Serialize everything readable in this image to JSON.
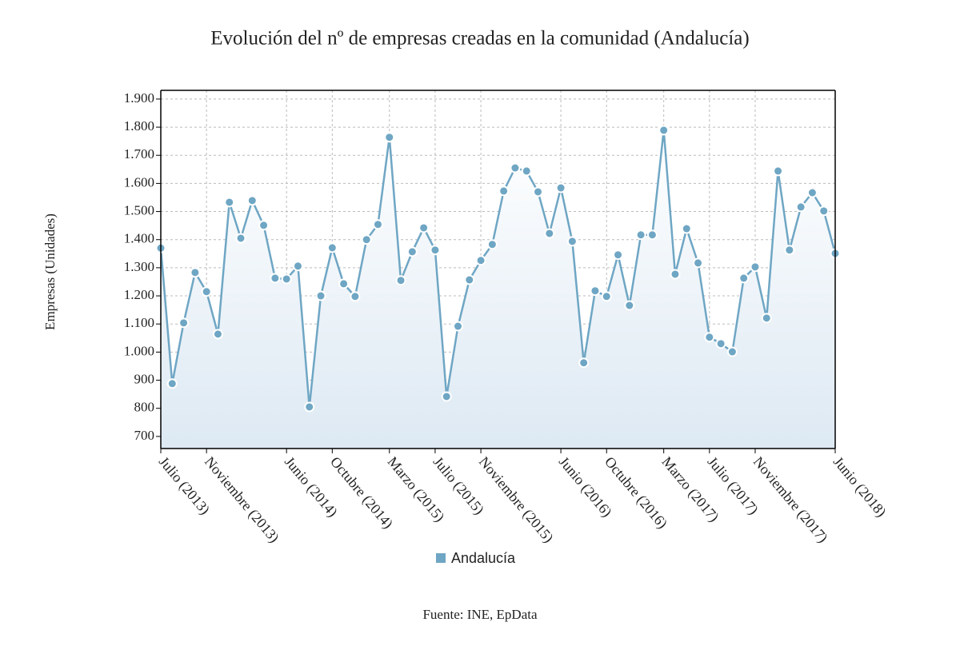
{
  "chart_data": {
    "type": "line",
    "title": "Evolución del nº de empresas creadas en la comunidad (Andalucía)",
    "y_label": "Empresas (Unidades)",
    "source": "Fuente: INE, EpData",
    "categories": [
      "Julio (2013)",
      null,
      null,
      null,
      "Noviembre (2013)",
      null,
      null,
      null,
      null,
      null,
      null,
      "Junio (2014)",
      null,
      null,
      null,
      "Octubre (2014)",
      null,
      null,
      null,
      null,
      "Marzo (2015)",
      null,
      null,
      null,
      "Julio (2015)",
      null,
      null,
      null,
      "Noviembre (2015)",
      null,
      null,
      null,
      null,
      null,
      null,
      "Junio (2016)",
      null,
      null,
      null,
      "Octubre (2016)",
      null,
      null,
      null,
      null,
      "Marzo (2017)",
      null,
      null,
      null,
      "Julio (2017)",
      null,
      null,
      null,
      "Noviembre (2017)",
      null,
      null,
      null,
      null,
      null,
      null,
      "Junio (2018)"
    ],
    "series": [
      {
        "name": "Andalucía",
        "color": "#6fa6c4",
        "values": [
          1370,
          888,
          1104,
          1283,
          1215,
          1064,
          1533,
          1405,
          1539,
          1451,
          1263,
          1260,
          1306,
          805,
          1200,
          1371,
          1243,
          1198,
          1400,
          1454,
          1764,
          1255,
          1357,
          1442,
          1363,
          842,
          1092,
          1257,
          1326,
          1383,
          1573,
          1655,
          1644,
          1570,
          1422,
          1584,
          1394,
          962,
          1218,
          1198,
          1346,
          1166,
          1417,
          1417,
          1789,
          1277,
          1439,
          1317,
          1053,
          1030,
          1001,
          1263,
          1303,
          1121,
          1644,
          1363,
          1516,
          1567,
          1502,
          1351
        ]
      }
    ],
    "ylim": [
      657,
      1931
    ],
    "yticks": [
      700,
      800,
      900,
      {
        "value": 1000,
        "label": "1.000"
      },
      {
        "value": 1100,
        "label": "1.100"
      },
      {
        "value": 1200,
        "label": "1.200"
      },
      {
        "value": 1300,
        "label": "1.300"
      },
      {
        "value": 1400,
        "label": "1.400"
      },
      {
        "value": 1500,
        "label": "1.500"
      },
      {
        "value": 1600,
        "label": "1.600"
      },
      {
        "value": 1700,
        "label": "1.700"
      },
      {
        "value": 1800,
        "label": "1.800"
      },
      {
        "value": 1900,
        "label": "1.900"
      }
    ],
    "grid": true,
    "legend": "bottom"
  }
}
